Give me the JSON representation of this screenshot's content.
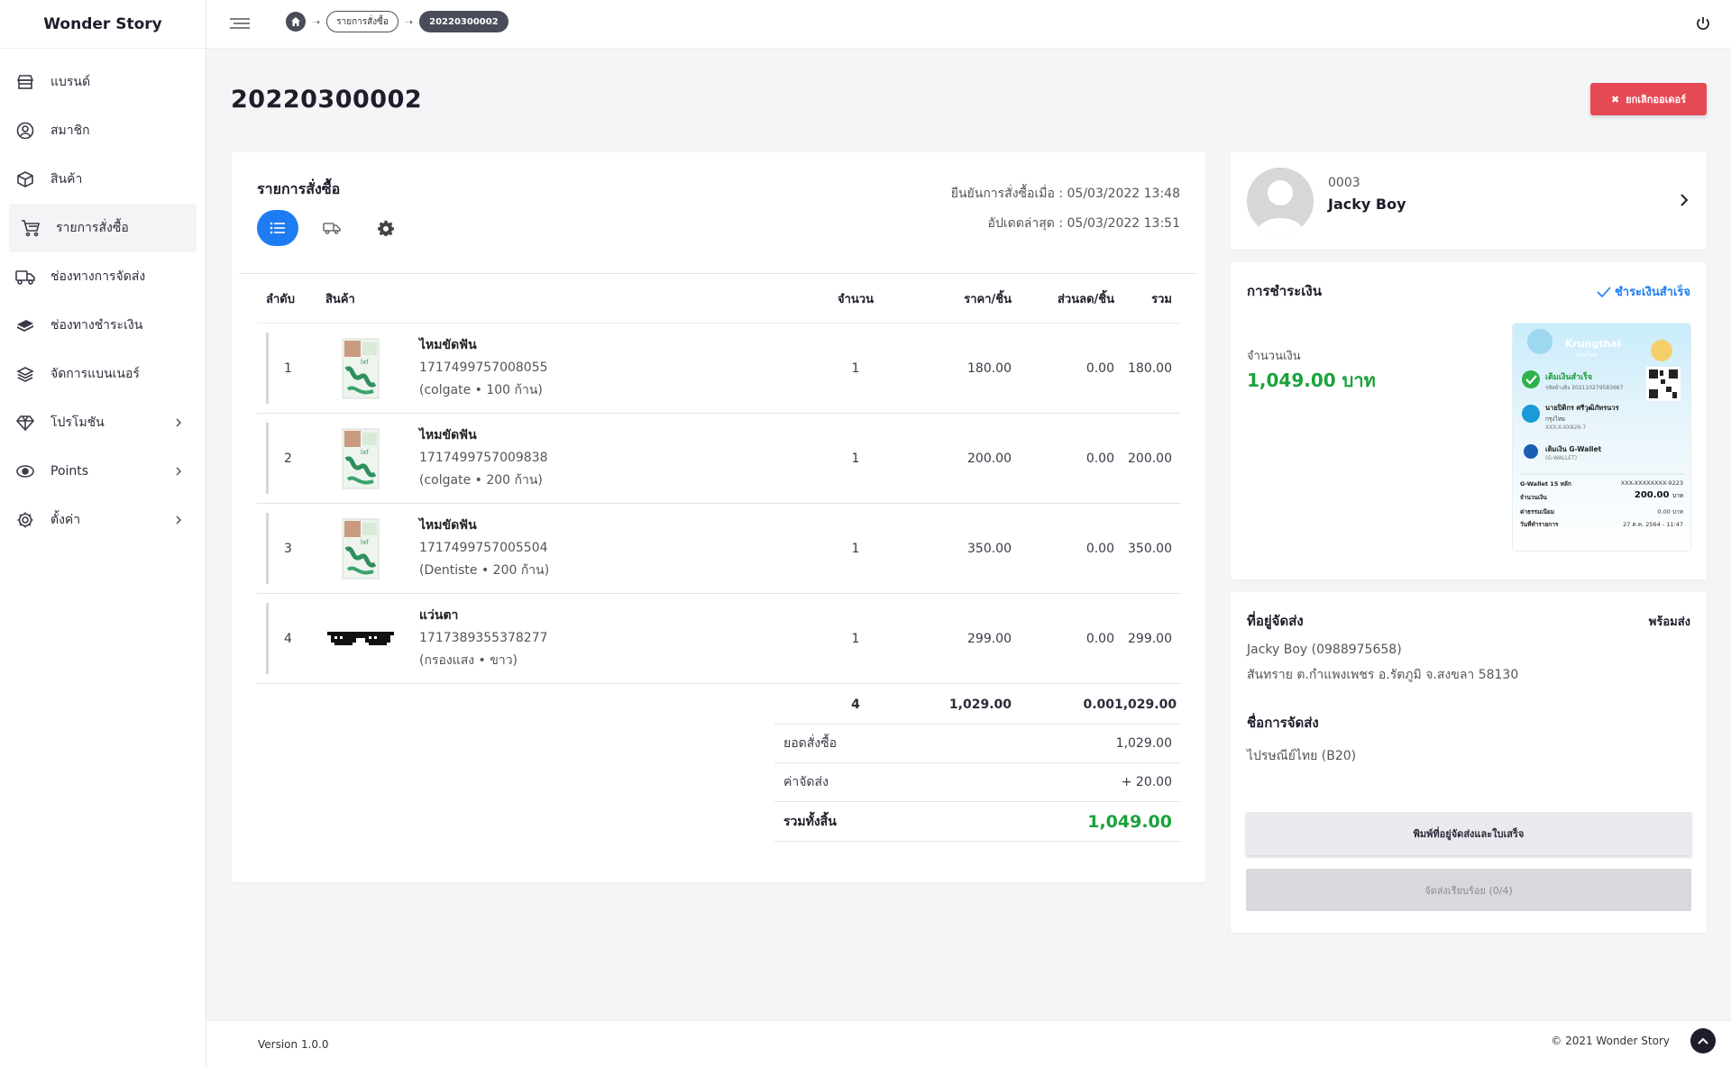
{
  "app": {
    "brand": "Wonder Story"
  },
  "sidebar": {
    "items": [
      {
        "label": "แบรนด์",
        "icon": "store-icon",
        "active": false,
        "has_children": false
      },
      {
        "label": "สมาชิก",
        "icon": "member-icon",
        "active": false,
        "has_children": false
      },
      {
        "label": "สินค้า",
        "icon": "box-icon",
        "active": false,
        "has_children": false
      },
      {
        "label": "รายการสั่งซื้อ",
        "icon": "cart-icon",
        "active": true,
        "has_children": false
      },
      {
        "label": "ช่องทางการจัดส่ง",
        "icon": "truck-icon",
        "active": false,
        "has_children": false
      },
      {
        "label": "ช่องทางชำระเงิน",
        "icon": "money-icon",
        "active": false,
        "has_children": false
      },
      {
        "label": "จัดการแบนเนอร์",
        "icon": "layers-icon",
        "active": false,
        "has_children": false
      },
      {
        "label": "โปรโมชัน",
        "icon": "diamond-icon",
        "active": false,
        "has_children": true
      },
      {
        "label": "Points",
        "icon": "points-icon",
        "active": false,
        "has_children": true
      },
      {
        "label": "ตั้งค่า",
        "icon": "gear-icon",
        "active": false,
        "has_children": true
      }
    ]
  },
  "header": {
    "breadcrumb": [
      "รายการสั่งซื้อ",
      "20220300002"
    ]
  },
  "page": {
    "title": "20220300002",
    "cancel_label": "ยกเลิกออเดอร์"
  },
  "order": {
    "section_title": "รายการสั่งซื้อ",
    "confirmed_at": "ยืนยันการสั่งซื้อเมื่อ : 05/03/2022 13:48",
    "updated_at": "อัปเดตล่าสุด : 05/03/2022 13:51",
    "columns": {
      "no": "ลำดับ",
      "product": "สินค้า",
      "qty": "จำนวน",
      "price": "ราคา/ชิ้น",
      "discount": "ส่วนลด/ชิ้น",
      "sum": "รวม"
    },
    "items": [
      {
        "no": "1",
        "name": "ไหมขัดฟัน",
        "sku": "1717499757008055",
        "variant": "(colgate • 100 ก้าน)",
        "qty": "1",
        "price": "180.00",
        "discount": "0.00",
        "sum": "180.00",
        "thumb": "floss"
      },
      {
        "no": "2",
        "name": "ไหมขัดฟัน",
        "sku": "1717499757009838",
        "variant": "(colgate • 200 ก้าน)",
        "qty": "1",
        "price": "200.00",
        "discount": "0.00",
        "sum": "200.00",
        "thumb": "floss"
      },
      {
        "no": "3",
        "name": "ไหมขัดฟัน",
        "sku": "1717499757005504",
        "variant": "(Dentiste • 200 ก้าน)",
        "qty": "1",
        "price": "350.00",
        "discount": "0.00",
        "sum": "350.00",
        "thumb": "floss"
      },
      {
        "no": "4",
        "name": "แว่นตา",
        "sku": "1717389355378277",
        "variant": "(กรองแสง • ขาว)",
        "qty": "1",
        "price": "299.00",
        "discount": "0.00",
        "sum": "299.00",
        "thumb": "glasses"
      }
    ],
    "totals": {
      "qty": "4",
      "price": "1,029.00",
      "discount": "0.00",
      "sum": "1,029.00"
    },
    "summary": {
      "subtotal_label": "ยอดสั่งซื้อ",
      "subtotal": "1,029.00",
      "shipping_label": "ค่าจัดส่ง",
      "shipping": "+ 20.00",
      "grand_label": "รวมทั้งสิ้น",
      "grand": "1,049.00"
    }
  },
  "customer": {
    "code": "0003",
    "name": "Jacky Boy"
  },
  "payment": {
    "title": "การชำระเงิน",
    "status": "ชำระเงินสำเร็จ",
    "amount_label": "จำนวนเงิน",
    "amount": "1,049.00 บาท",
    "slip": {
      "bank": "Krungthai",
      "bank_th": "กรุงไทย",
      "success": "เติมเงินสำเร็จ",
      "ref": "รหัสอ้างอิง 202110279583667",
      "payer": "นายปิติกร ศรีวุฒิภัทรนวร",
      "payer_bank": "กรุงไทย",
      "payer_acct": "XXX-X-XX826-7",
      "target": "เติมเงิน G-Wallet",
      "target_sub": "(G-WALLET)",
      "wallet_label": "G-Wallet 15 หลัก",
      "wallet_no": "XXX-XXXXXXXX-9223",
      "amount_label": "จำนวนเงิน",
      "amount": "200.00",
      "amount_unit": "บาท",
      "fee_label": "ค่าธรรมเนียม",
      "fee": "0.00 บาท",
      "date_label": "วันที่ทำรายการ",
      "date": "27 ต.ค. 2564 - 11:47"
    }
  },
  "shipping": {
    "title": "ที่อยู่จัดส่ง",
    "status": "พร้อมส่ง",
    "recipient": "Jacky Boy (0988975658)",
    "address": "สันทราย ต.กำแพงเพชร อ.รัตภูมิ จ.สงขลา 58130",
    "method_title": "ชื่อการจัดส่ง",
    "method": "ไปรษณีย์ไทย (B20)",
    "print_label": "พิมพ์ที่อยู่จัดส่งและใบเสร็จ",
    "done_label": "จัดส่งเรียบร้อย (0/4)"
  },
  "footer": {
    "version": "Version 1.0.0",
    "copyright": "© 2021 Wonder Story"
  },
  "colors": {
    "accent": "#1e7cf2",
    "danger": "#e64a55",
    "success": "#1aa33b",
    "dark": "#1d1d2b"
  }
}
